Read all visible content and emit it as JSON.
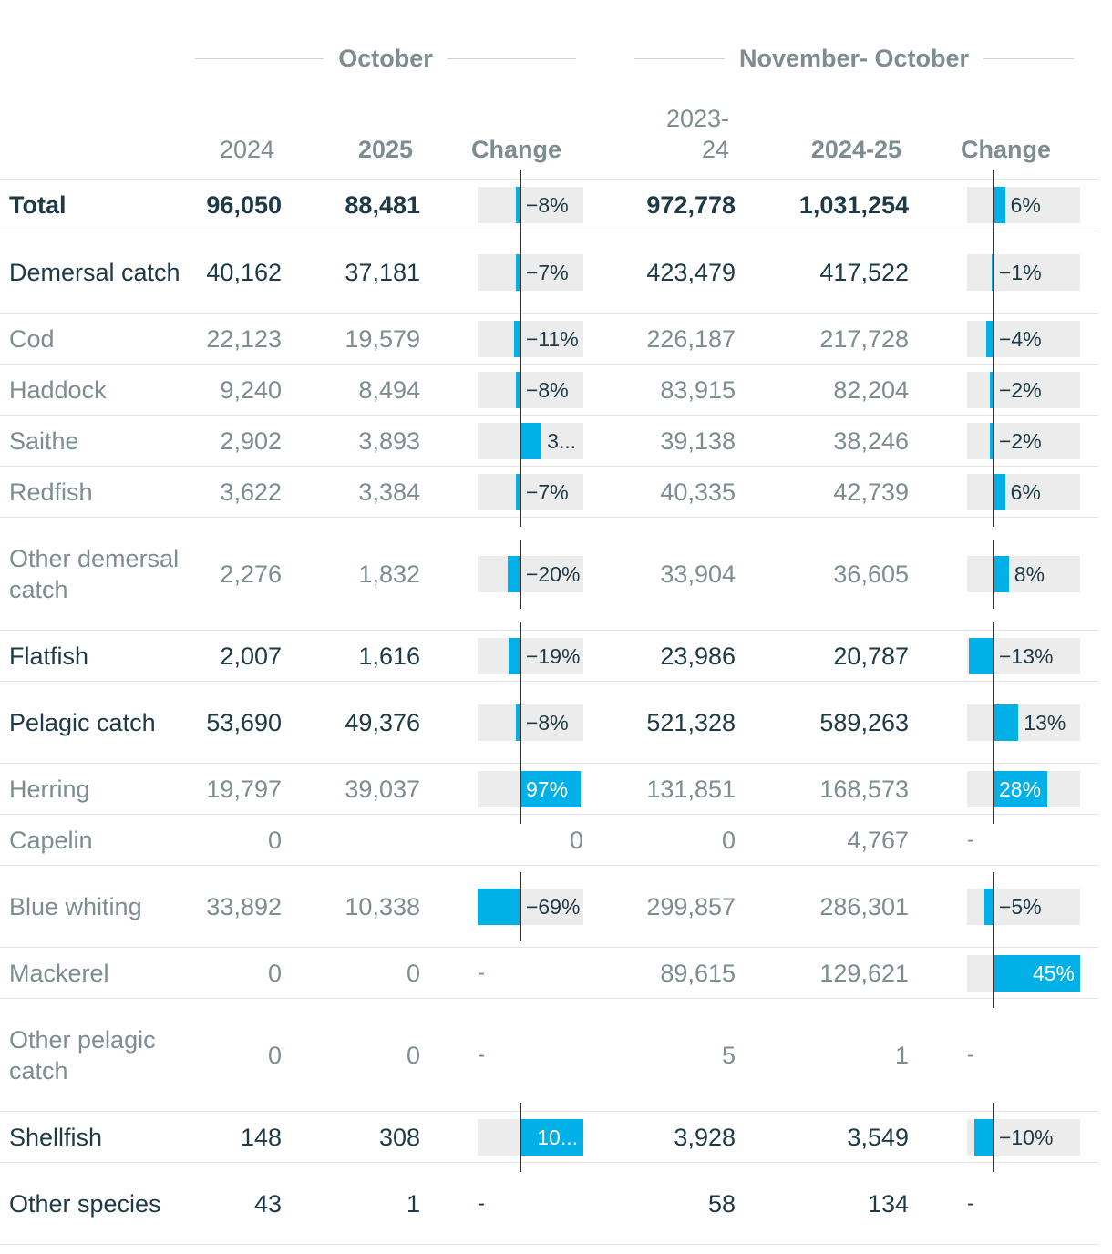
{
  "header": {
    "group_october": "October",
    "group_period": "November- October",
    "col_2024": "2024",
    "col_2025": "2025",
    "col_change": "Change",
    "col_2023_24_line1": "2023-",
    "col_2023_24_line2": "24",
    "col_2024_25": "2024-25",
    "col_change2": "Change"
  },
  "rows": [
    {
      "name": "Total",
      "v2024": "96,050",
      "v2025": "88,481",
      "chg": "−8%",
      "chg_value": -8,
      "p1": "972,778",
      "p2": "1,031,254",
      "chg2": "6%",
      "chg2_value": 6
    },
    {
      "name": "Demersal catch",
      "v2024": "40,162",
      "v2025": "37,181",
      "chg": "−7%",
      "chg_value": -7,
      "p1": "423,479",
      "p2": "417,522",
      "chg2": "−1%",
      "chg2_value": -1
    },
    {
      "name": "Cod",
      "v2024": "22,123",
      "v2025": "19,579",
      "chg": "−11%",
      "chg_value": -11,
      "p1": "226,187",
      "p2": "217,728",
      "chg2": "−4%",
      "chg2_value": -4
    },
    {
      "name": "Haddock",
      "v2024": "9,240",
      "v2025": "8,494",
      "chg": "−8%",
      "chg_value": -8,
      "p1": "83,915",
      "p2": "82,204",
      "chg2": "−2%",
      "chg2_value": -2
    },
    {
      "name": "Saithe",
      "v2024": "2,902",
      "v2025": "3,893",
      "chg": "3...",
      "chg_value": 34,
      "p1": "39,138",
      "p2": "38,246",
      "chg2": "−2%",
      "chg2_value": -2
    },
    {
      "name": "Redfish",
      "v2024": "3,622",
      "v2025": "3,384",
      "chg": "−7%",
      "chg_value": -7,
      "p1": "40,335",
      "p2": "42,739",
      "chg2": "6%",
      "chg2_value": 6
    },
    {
      "name": "Other demersal catch",
      "v2024": "2,276",
      "v2025": "1,832",
      "chg": "−20%",
      "chg_value": -20,
      "p1": "33,904",
      "p2": "36,605",
      "chg2": "8%",
      "chg2_value": 8
    },
    {
      "name": "Flatfish",
      "v2024": "2,007",
      "v2025": "1,616",
      "chg": "−19%",
      "chg_value": -19,
      "p1": "23,986",
      "p2": "20,787",
      "chg2": "−13%",
      "chg2_value": -13
    },
    {
      "name": "Pelagic catch",
      "v2024": "53,690",
      "v2025": "49,376",
      "chg": "−8%",
      "chg_value": -8,
      "p1": "521,328",
      "p2": "589,263",
      "chg2": "13%",
      "chg2_value": 13
    },
    {
      "name": "Herring",
      "v2024": "19,797",
      "v2025": "39,037",
      "chg": "97%",
      "chg_value": 97,
      "p1": "131,851",
      "p2": "168,573",
      "chg2": "28%",
      "chg2_value": 28
    },
    {
      "name": "Capelin",
      "v2024": "0",
      "v2025": "",
      "chg": "0",
      "p1": "0",
      "p2": "4,767",
      "chg2": "-"
    },
    {
      "name": "Blue whiting",
      "v2024": "33,892",
      "v2025": "10,338",
      "chg": "−69%",
      "chg_value": -69,
      "p1": "299,857",
      "p2": "286,301",
      "chg2": "−5%",
      "chg2_value": -5
    },
    {
      "name": "Mackerel",
      "v2024": "0",
      "v2025": "0",
      "chg": "-",
      "p1": "89,615",
      "p2": "129,621",
      "chg2": "45%",
      "chg2_value": 45
    },
    {
      "name": "Other pelagic catch",
      "v2024": "0",
      "v2025": "0",
      "chg": "-",
      "p1": "5",
      "p2": "1",
      "chg2": "-"
    },
    {
      "name": "Shellfish",
      "v2024": "148",
      "v2025": "308",
      "chg": "10...",
      "chg_value": 108,
      "p1": "3,928",
      "p2": "3,549",
      "chg2": "−10%",
      "chg2_value": -10
    },
    {
      "name": "Other species",
      "v2024": "43",
      "v2025": "1",
      "chg": "-",
      "p1": "58",
      "p2": "134",
      "chg2": "-"
    }
  ],
  "colors": {
    "bar_fill": "#00b0e6",
    "bar_bg": "#ececec",
    "text_primary": "#1d3a46",
    "text_secondary": "#7d8d90"
  }
}
